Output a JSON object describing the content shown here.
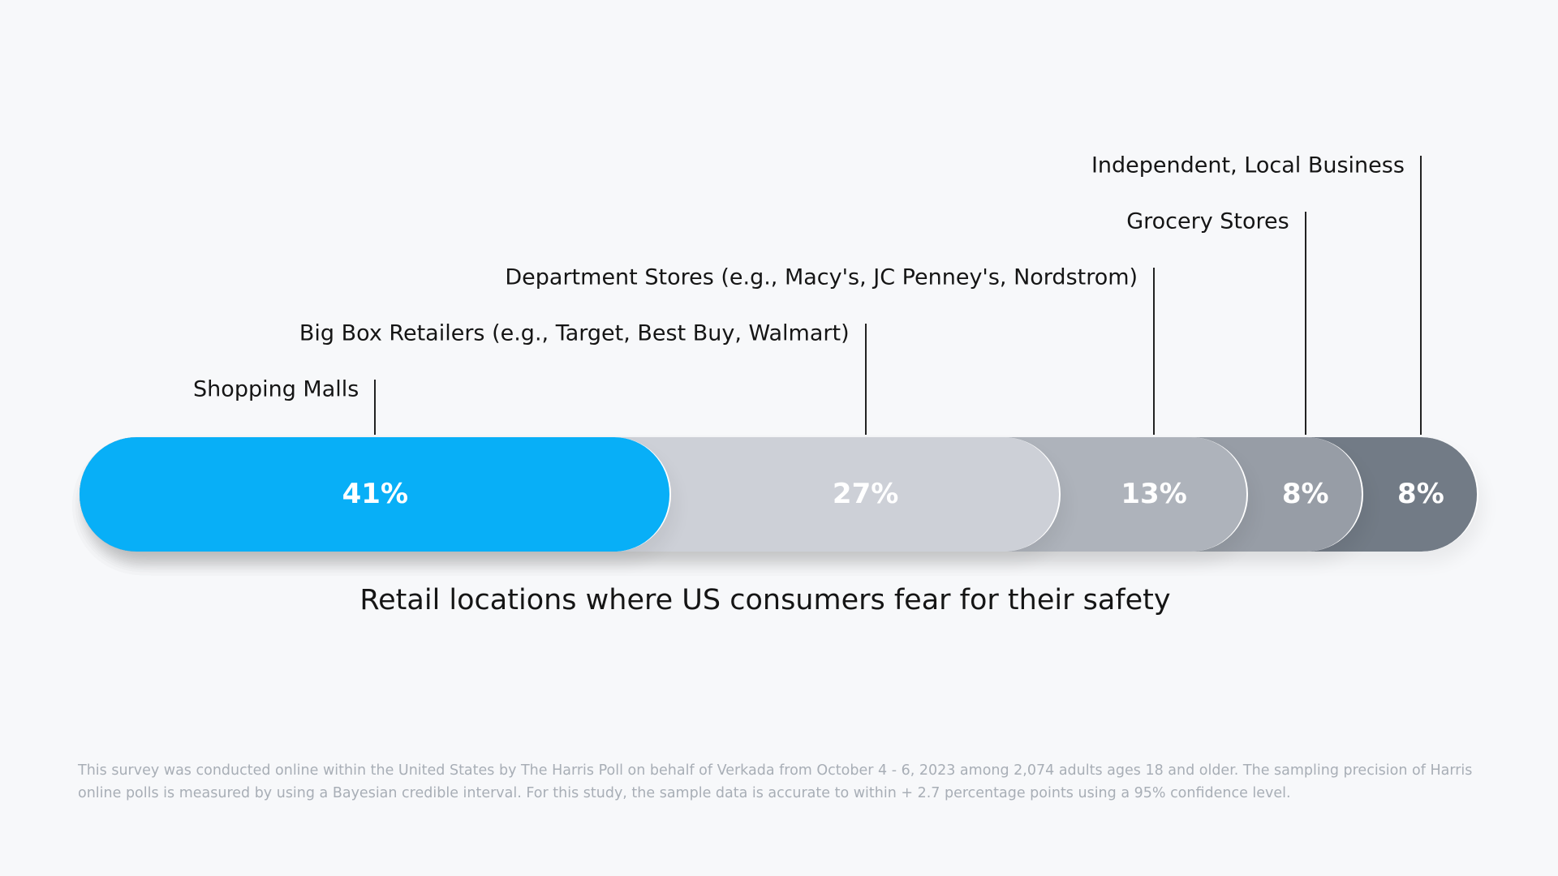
{
  "chart_data": {
    "type": "bar",
    "orientation": "horizontal-stacked",
    "title": "Retail locations where US consumers fear for their safety",
    "categories": [
      "Shopping Malls",
      "Big Box Retailers (e.g., Target, Best Buy, Walmart)",
      "Department Stores (e.g., Macy's, JC Penney's, Nordstrom)",
      "Grocery Stores",
      "Independent, Local Business"
    ],
    "values": [
      41,
      27,
      13,
      8,
      8
    ],
    "value_labels": [
      "41%",
      "27%",
      "13%",
      "8%",
      "8%"
    ],
    "colors": [
      "#08aff7",
      "#cdd0d7",
      "#aeb3bb",
      "#979da6",
      "#727b86"
    ],
    "grid": false,
    "legend": "none"
  },
  "footnote": "This survey was conducted online within the United States by The Harris Poll on behalf of Verkada from October 4 - 6, 2023 among 2,074 adults ages 18 and older. The sampling precision of Harris online polls is measured by using a Bayesian credible interval. For this study, the sample data is accurate to within + 2.7 percentage points using a 95% confidence level."
}
